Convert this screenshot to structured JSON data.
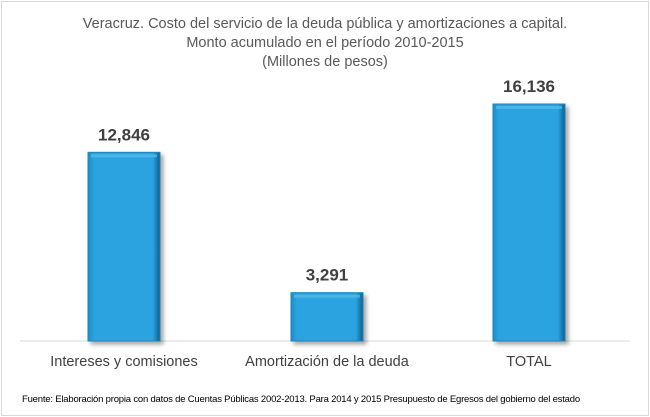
{
  "chart_data": {
    "type": "bar",
    "title": [
      "Veracruz. Costo del servicio de la deuda pública y amortizaciones a capital.",
      "Monto acumulado en el período 2010-2015",
      "(Millones de pesos)"
    ],
    "categories": [
      "Intereses y comisiones",
      "Amortización de la deuda",
      "TOTAL"
    ],
    "values": [
      12846,
      3291,
      16136
    ],
    "data_labels": [
      "12,846",
      "3,291",
      "16,136"
    ],
    "xlabel": "",
    "ylabel": "",
    "ylim": [
      0,
      16136
    ],
    "grid": false,
    "bar_color": "#29a3e0",
    "source": "Fuente: Elaboración propia con datos de Cuentas Públicas 2002-2013. Para 2014 y 2015 Presupuesto de Egresos del gobierno del estado"
  }
}
